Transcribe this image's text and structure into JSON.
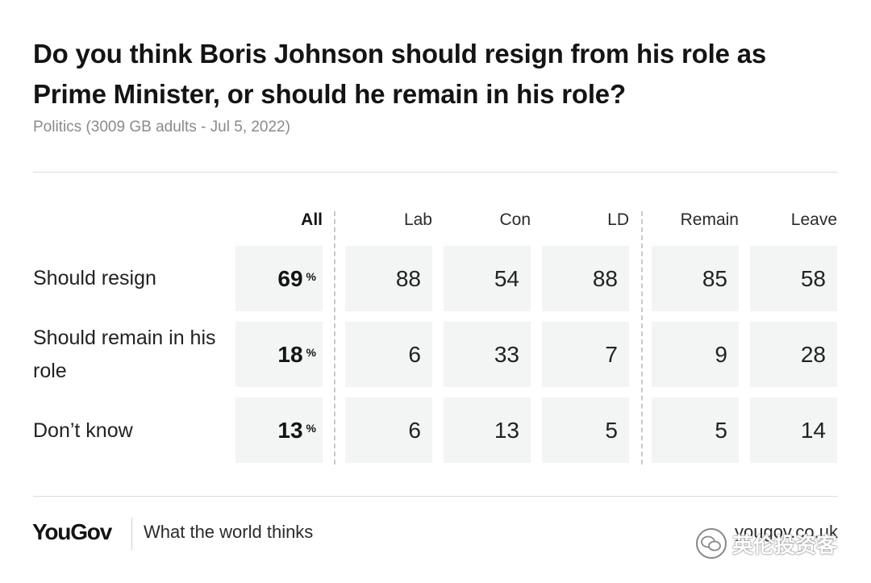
{
  "header": {
    "title": "Do you think Boris Johnson should resign from his role as Prime Minister, or should he remain in his role?",
    "subtitle": "Politics (3009 GB adults - Jul 5, 2022)"
  },
  "chart_data": {
    "type": "table",
    "columns": [
      "All",
      "Lab",
      "Con",
      "LD",
      "Remain",
      "Leave"
    ],
    "percent_sign": "%",
    "rows": [
      {
        "label": "Should resign",
        "values": [
          69,
          88,
          54,
          88,
          85,
          58
        ]
      },
      {
        "label": "Should remain in his role",
        "values": [
          18,
          6,
          33,
          7,
          9,
          28
        ]
      },
      {
        "label": "Don’t know",
        "values": [
          13,
          6,
          13,
          5,
          5,
          14
        ]
      }
    ]
  },
  "footer": {
    "logo": "YouGov",
    "tagline": "What the world thinks",
    "site": "yougov.co.uk",
    "watermark": "英伦投资客",
    "watermark_icon": "wechat-icon"
  },
  "colors": {
    "cell_background": "#f3f4f4",
    "divider": "#c9c9c9",
    "text": "#1a1a1a",
    "subtitle": "#8a8a8a"
  }
}
